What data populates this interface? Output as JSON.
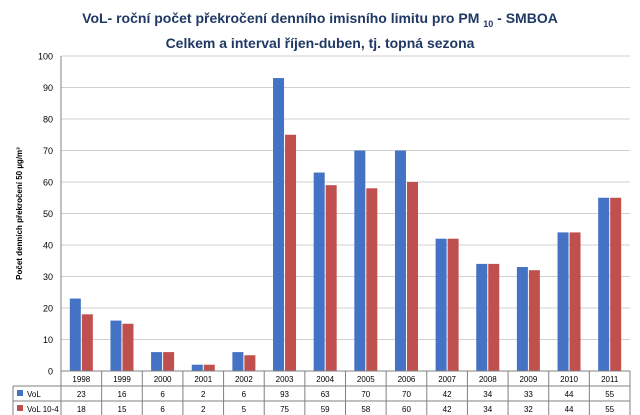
{
  "title": {
    "line1_main": "VoL- roční počet překročení denního imisního limitu pro PM",
    "line1_sub": "10",
    "line1_end": "- SMBOA",
    "line2": "Celkem a interval říjen-duben, tj. topná sezona"
  },
  "chart_data": {
    "type": "bar",
    "title": "VoL- roční počet překročení denního imisního limitu pro PM 10 - SMBOA / Celkem a interval říjen-duben, tj. topná sezona",
    "xlabel": "",
    "ylabel": "Počet denních překročení 50 µg/m³",
    "ylim": [
      0,
      100
    ],
    "yticks": [
      0,
      10,
      20,
      30,
      40,
      50,
      60,
      70,
      80,
      90,
      100
    ],
    "grid": true,
    "legend": "data-table",
    "categories": [
      "1998",
      "1999",
      "2000",
      "2001",
      "2002",
      "2003",
      "2004",
      "2005",
      "2006",
      "2007",
      "2008",
      "2009",
      "2010",
      "2011"
    ],
    "series": [
      {
        "name": "VoL",
        "color": "#4472c4",
        "values": [
          23,
          16,
          6,
          2,
          6,
          93,
          63,
          70,
          70,
          42,
          34,
          33,
          44,
          55
        ]
      },
      {
        "name": "VoL 10-4",
        "color": "#c0504d",
        "values": [
          18,
          15,
          6,
          2,
          5,
          75,
          59,
          58,
          60,
          42,
          34,
          32,
          44,
          55
        ]
      }
    ]
  }
}
